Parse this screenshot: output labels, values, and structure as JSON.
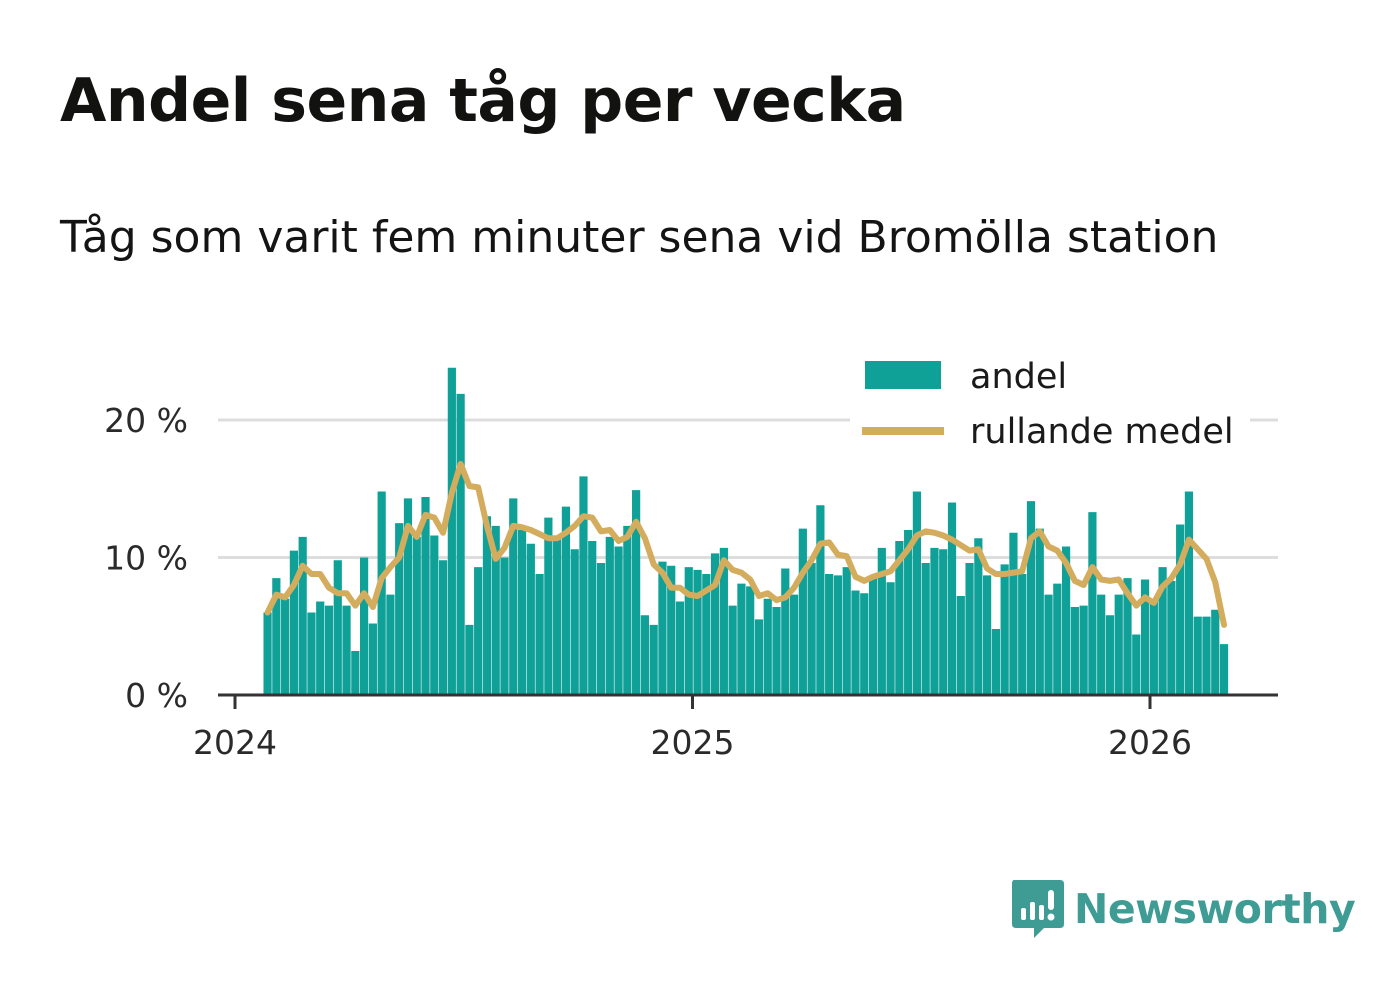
{
  "title": "Andel sena tåg per vecka",
  "subtitle": "Tåg som varit fem minuter sena vid Bromölla station",
  "brand": {
    "name": "Newsworthy",
    "logo_icon": "newsworthy-logo-icon",
    "color": "#3f9c95"
  },
  "colors": {
    "bar": "#0fa198",
    "line": "#d4ac5d",
    "grid": "#dddddd",
    "axis": "#333333"
  },
  "chart_data": {
    "type": "bar",
    "title": "Andel sena tåg per vecka",
    "subtitle": "Tåg som varit fem minuter sena vid Bromölla station",
    "xlabel": "",
    "ylabel": "",
    "ylim": [
      0,
      24
    ],
    "yticks": [
      0,
      10,
      20
    ],
    "ytick_labels": [
      "0 %",
      "10 %",
      "20 %"
    ],
    "xlim": [
      2024.0,
      2026.3
    ],
    "xticks": [
      2024,
      2025,
      2026
    ],
    "xtick_labels": [
      "2024",
      "2025",
      "2026"
    ],
    "grid": true,
    "legend": {
      "position": "top-right",
      "entries": [
        "andel",
        "rullande medel"
      ]
    },
    "series": [
      {
        "name": "andel",
        "type": "bar",
        "x_start": 2024.0712,
        "x_step": 0.01918,
        "values": [
          6,
          8.5,
          7,
          10.5,
          11.5,
          6,
          6.8,
          6.5,
          9.8,
          6.5,
          3.2,
          10,
          5.2,
          14.8,
          7.3,
          12.5,
          14.3,
          11.5,
          14.4,
          11.6,
          9.8,
          23.8,
          21.9,
          5.1,
          9.3,
          13,
          12.3,
          10,
          14.3,
          12,
          11,
          8.8,
          12.9,
          11.3,
          13.7,
          10.6,
          15.9,
          11.2,
          9.6,
          11.5,
          10.8,
          12.3,
          14.9,
          5.8,
          5.1,
          9.7,
          9.4,
          6.8,
          9.3,
          9.1,
          8.8,
          10.3,
          10.7,
          6.5,
          8.1,
          7.9,
          5.5,
          7,
          6.4,
          9.2,
          7.3,
          12.1,
          9.6,
          13.8,
          8.8,
          8.7,
          9.3,
          7.6,
          7.4,
          8.6,
          10.7,
          8.2,
          11.2,
          12,
          14.8,
          9.6,
          10.7,
          10.6,
          14,
          7.2,
          9.6,
          11.4,
          8.7,
          4.8,
          9.5,
          11.8,
          8.8,
          14.1,
          12.1,
          7.3,
          8.1,
          10.8,
          6.4,
          6.5,
          13.3,
          7.3,
          5.8,
          7.3,
          8.5,
          4.4,
          8.4,
          6.8,
          9.3,
          8.3,
          12.4,
          14.8,
          5.7,
          5.7,
          6.2,
          3.7
        ]
      },
      {
        "name": "rullande medel",
        "type": "line",
        "values": [
          6,
          7.3,
          7.1,
          8,
          9.4,
          8.8,
          8.8,
          7.8,
          7.4,
          7.4,
          6.5,
          7.4,
          6.4,
          8.5,
          9.3,
          10,
          12.3,
          11.5,
          13.1,
          12.9,
          11.8,
          14.7,
          16.8,
          15.2,
          15.1,
          12.3,
          9.9,
          10.7,
          12.3,
          12.2,
          12,
          11.7,
          11.4,
          11.4,
          11.8,
          12.3,
          13,
          12.9,
          11.9,
          12,
          11.2,
          11.5,
          12.6,
          11.4,
          9.5,
          8.9,
          7.8,
          7.8,
          7.3,
          7.2,
          7.6,
          8,
          9.8,
          9.1,
          8.9,
          8.4,
          7.2,
          7.4,
          6.9,
          7.1,
          7.8,
          8.9,
          9.8,
          11,
          11.1,
          10.2,
          10.1,
          8.6,
          8.3,
          8.6,
          8.8,
          9,
          9.8,
          10.6,
          11.6,
          11.9,
          11.8,
          11.6,
          11.3,
          10.9,
          10.5,
          10.6,
          9.2,
          8.8,
          8.8,
          8.9,
          9,
          11.4,
          11.9,
          10.8,
          10.5,
          9.6,
          8.3,
          8,
          9.3,
          8.4,
          8.3,
          8.4,
          7.4,
          6.5,
          7.1,
          6.7,
          7.9,
          8.5,
          9.5,
          11.3,
          10.6,
          9.9,
          8.2,
          5.1
        ]
      }
    ]
  }
}
